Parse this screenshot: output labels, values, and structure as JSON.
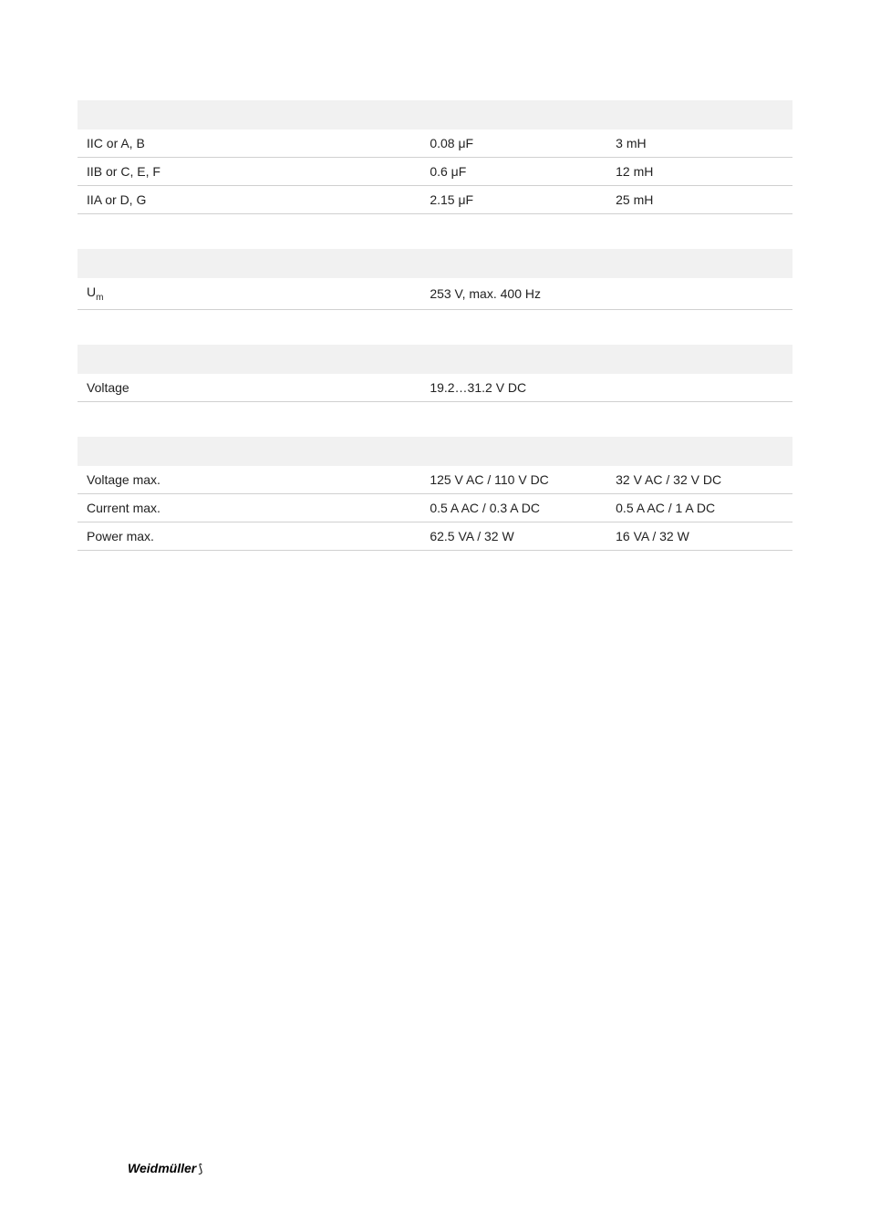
{
  "table1": {
    "columns": 3,
    "col_widths": [
      "48%",
      "26%",
      "26%"
    ],
    "header_bg": "#f1f1f1",
    "border_color": "#d0d0d0",
    "font_size": 14,
    "text_color": "#222222",
    "rows": [
      {
        "c1": "IIC or A, B",
        "c2": "0.08 μF",
        "c3": "3 mH"
      },
      {
        "c1": "IIB or C, E, F",
        "c2": "0.6 μF",
        "c3": "12 mH"
      },
      {
        "c1": "IIA or D, G",
        "c2": "2.15 μF",
        "c3": "25 mH"
      }
    ]
  },
  "table2": {
    "columns": 2,
    "col_widths": [
      "48%",
      "52%"
    ],
    "header_bg": "#f1f1f1",
    "border_color": "#d0d0d0",
    "font_size": 14,
    "text_color": "#222222",
    "rows": [
      {
        "c1_main": "U",
        "c1_sub": "m",
        "c2": "253 V, max. 400 Hz"
      }
    ]
  },
  "table3": {
    "columns": 2,
    "col_widths": [
      "48%",
      "52%"
    ],
    "header_bg": "#f1f1f1",
    "border_color": "#d0d0d0",
    "font_size": 14,
    "text_color": "#222222",
    "rows": [
      {
        "c1": "Voltage",
        "c2": "19.2…31.2 V DC"
      }
    ]
  },
  "table4": {
    "columns": 3,
    "col_widths": [
      "48%",
      "26%",
      "26%"
    ],
    "header_bg": "#f1f1f1",
    "border_color": "#d0d0d0",
    "font_size": 14,
    "text_color": "#222222",
    "rows": [
      {
        "c1": "Voltage max.",
        "c2": "125 V AC / 110 V DC",
        "c3": "32 V AC / 32 V DC"
      },
      {
        "c1": "Current max.",
        "c2": "0.5 A AC / 0.3 A DC",
        "c3": "0.5 A AC / 1 A DC"
      },
      {
        "c1": "Power max.",
        "c2": "62.5 VA / 32 W",
        "c3": "16 VA / 32 W"
      }
    ]
  },
  "footer": {
    "brand": "Weidmüller",
    "symbol": "⟆"
  }
}
